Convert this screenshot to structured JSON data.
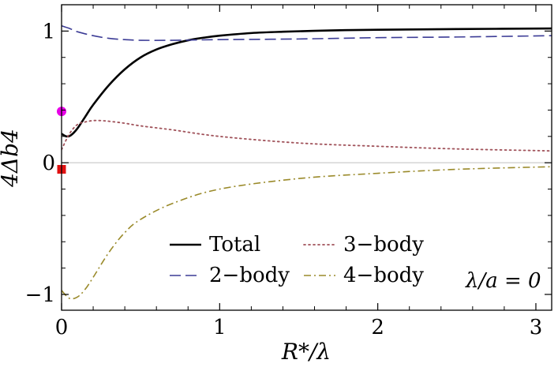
{
  "chart_data": {
    "type": "line",
    "xlabel": "R*/λ",
    "ylabel": "4Δb4",
    "xlim": [
      0,
      3.1
    ],
    "ylim": [
      -1.12,
      1.2
    ],
    "xticks": [
      0,
      1,
      2,
      3
    ],
    "yticks": [
      -1,
      0,
      1
    ],
    "grid": false,
    "zero_line": true,
    "legend_position": "bottom-center",
    "annotation": "λ/a = 0",
    "series": [
      {
        "name": "Total",
        "style": "solid",
        "color": "#000000",
        "x": [
          0.0,
          0.03,
          0.06,
          0.1,
          0.15,
          0.2,
          0.3,
          0.4,
          0.5,
          0.6,
          0.7,
          0.8,
          0.9,
          1.0,
          1.2,
          1.4,
          1.7,
          2.0,
          2.5,
          3.1
        ],
        "y": [
          0.22,
          0.2,
          0.21,
          0.26,
          0.35,
          0.44,
          0.59,
          0.71,
          0.8,
          0.86,
          0.9,
          0.93,
          0.95,
          0.965,
          0.985,
          0.995,
          1.005,
          1.01,
          1.015,
          1.02
        ]
      },
      {
        "name": "2-body",
        "style": "dashed",
        "color": "#3c3c96",
        "x": [
          0.0,
          0.05,
          0.1,
          0.2,
          0.3,
          0.4,
          0.5,
          0.7,
          1.0,
          1.5,
          2.0,
          2.5,
          3.1
        ],
        "y": [
          1.04,
          1.02,
          0.995,
          0.965,
          0.945,
          0.935,
          0.93,
          0.93,
          0.935,
          0.94,
          0.95,
          0.955,
          0.965
        ]
      },
      {
        "name": "3-body",
        "style": "dotted",
        "color": "#a0525a",
        "x": [
          0.0,
          0.05,
          0.1,
          0.15,
          0.2,
          0.25,
          0.3,
          0.4,
          0.5,
          0.7,
          1.0,
          1.5,
          2.0,
          2.5,
          3.1
        ],
        "y": [
          0.1,
          0.22,
          0.29,
          0.31,
          0.32,
          0.32,
          0.315,
          0.3,
          0.28,
          0.25,
          0.2,
          0.15,
          0.125,
          0.105,
          0.09
        ]
      },
      {
        "name": "4-body",
        "style": "dashdot",
        "color": "#9a8a2a",
        "x": [
          0.0,
          0.05,
          0.1,
          0.15,
          0.2,
          0.3,
          0.4,
          0.5,
          0.7,
          1.0,
          1.5,
          2.0,
          2.5,
          3.1
        ],
        "y": [
          -0.97,
          -1.03,
          -1.02,
          -0.96,
          -0.87,
          -0.68,
          -0.53,
          -0.43,
          -0.31,
          -0.2,
          -0.12,
          -0.08,
          -0.05,
          -0.03
        ]
      }
    ],
    "markers": [
      {
        "shape": "circle",
        "color": "#e600e6",
        "x": 0.0,
        "y": 0.39
      },
      {
        "shape": "square",
        "color": "#e01010",
        "x": 0.0,
        "y": -0.05
      }
    ]
  }
}
